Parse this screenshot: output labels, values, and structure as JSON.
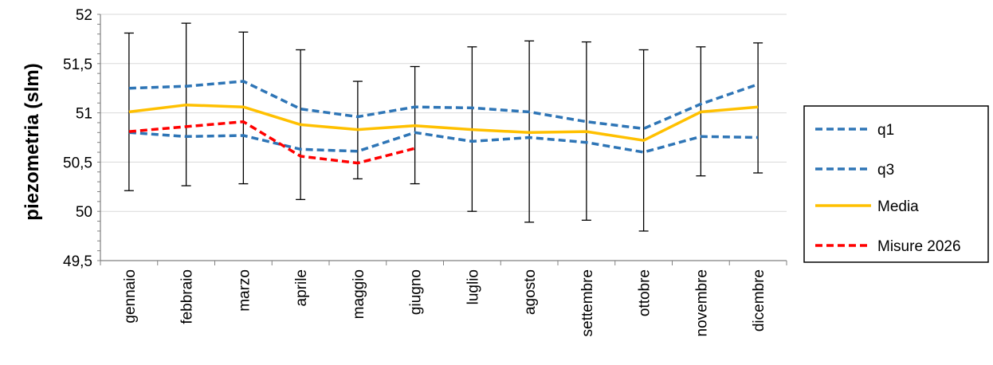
{
  "chart_data": {
    "type": "line",
    "title": "",
    "xlabel": "",
    "ylabel": "piezometria (slm)",
    "ylim": [
      49.5,
      52
    ],
    "yticks": [
      "49,5",
      "50",
      "50,5",
      "51",
      "51,5",
      "52"
    ],
    "ytick_values": [
      49.5,
      50,
      50.5,
      51,
      51.5,
      52
    ],
    "grid": "horizontal",
    "legend_position": "right",
    "categories": [
      "gennaio",
      "febbraio",
      "marzo",
      "aprile",
      "maggio",
      "giugno",
      "luglio",
      "agosto",
      "settembre",
      "ottobre",
      "novembre",
      "dicembre"
    ],
    "series": [
      {
        "name": "q1",
        "color": "#2E75B6",
        "style": "dashed",
        "values": [
          50.8,
          50.76,
          50.77,
          50.63,
          50.61,
          50.8,
          50.71,
          50.75,
          50.7,
          50.6,
          50.76,
          50.75
        ]
      },
      {
        "name": "q3",
        "color": "#2E75B6",
        "style": "dashed",
        "values": [
          51.25,
          51.27,
          51.32,
          51.04,
          50.96,
          51.06,
          51.05,
          51.01,
          50.91,
          50.84,
          51.09,
          51.29
        ]
      },
      {
        "name": "Media",
        "color": "#FFC000",
        "style": "solid",
        "values": [
          51.01,
          51.08,
          51.06,
          50.88,
          50.83,
          50.87,
          50.83,
          50.8,
          50.81,
          50.72,
          51.01,
          51.06
        ]
      },
      {
        "name": "Misure 2026",
        "color": "#FF0000",
        "style": "dashed",
        "values": [
          50.81,
          50.86,
          50.91,
          50.56,
          50.49,
          50.64,
          null,
          null,
          null,
          null,
          null,
          null
        ]
      }
    ],
    "error_bars": {
      "color": "#000000",
      "min": [
        50.21,
        50.26,
        50.28,
        50.12,
        50.33,
        50.28,
        50.0,
        49.89,
        49.91,
        49.8,
        50.36,
        50.39
      ],
      "max": [
        51.81,
        51.91,
        51.82,
        51.64,
        51.32,
        51.47,
        51.67,
        51.73,
        51.72,
        51.64,
        51.67,
        51.71
      ]
    }
  }
}
